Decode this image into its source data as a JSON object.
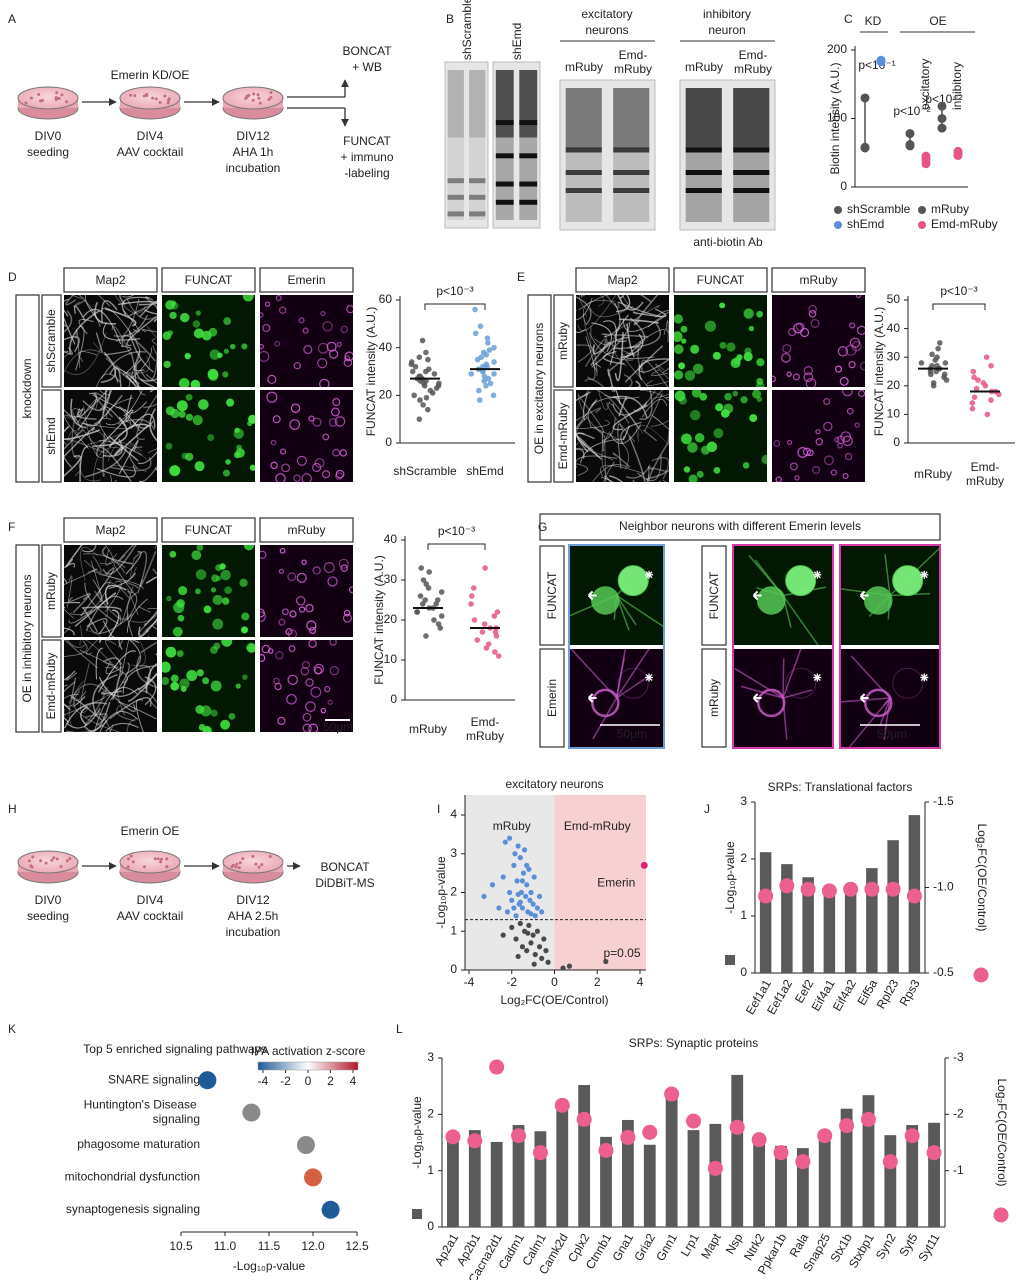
{
  "figure": {
    "letters": [
      "A",
      "B",
      "C",
      "D",
      "E",
      "F",
      "G",
      "H",
      "I",
      "J",
      "K",
      "L"
    ],
    "A": {
      "header": "Emerin KD/OE",
      "steps": [
        [
          "DIV0",
          "seeding"
        ],
        [
          "DIV4",
          "AAV cocktail"
        ],
        [
          "DIV12",
          "AHA 1h",
          "incubation"
        ]
      ],
      "outputs": [
        [
          "BONCAT",
          "+ WB"
        ],
        [
          "FUNCAT",
          "+ immuno",
          "-labeling"
        ]
      ]
    },
    "B": {
      "kd_lanes": [
        "shScramble",
        "shEmd"
      ],
      "oe_groups": [
        {
          "title": [
            "excitatory",
            "neurons"
          ],
          "lanes": [
            "mRuby",
            "Emd-mRuby"
          ]
        },
        {
          "title": [
            "inhibitory",
            "neuron"
          ],
          "lanes": [
            "mRuby",
            "Emd-mRuby"
          ]
        }
      ],
      "note": "anti-biotin Ab"
    },
    "D": {
      "columns": [
        "Map2",
        "FUNCAT",
        "Emerin"
      ],
      "rows": [
        "shScramble",
        "shEmd"
      ],
      "side": "knockdown"
    },
    "E": {
      "columns": [
        "Map2",
        "FUNCAT",
        "mRuby"
      ],
      "rows": [
        "mRuby",
        "Emd-mRuby"
      ],
      "side": "OE in excitatory neurons"
    },
    "F": {
      "columns": [
        "Map2",
        "FUNCAT",
        "mRuby"
      ],
      "rows": [
        "mRuby",
        "Emd-mRuby"
      ],
      "side": "OE in inhibitory neurons",
      "scale": "50μm"
    },
    "G": {
      "title": "Neighbor neurons with different Emerin levels",
      "left_rows": [
        "FUNCAT",
        "Emerin"
      ],
      "right_rows": [
        "FUNCAT",
        "mRuby"
      ],
      "scales": [
        "50μm",
        "50μm"
      ]
    },
    "H": {
      "header": "Emerin OE",
      "steps": [
        [
          "DIV0",
          "seeding"
        ],
        [
          "DIV4",
          "AAV cocktail"
        ],
        [
          "DIV12",
          "AHA 2.5h",
          "incubation"
        ]
      ],
      "output": [
        "BONCAT",
        "DiDBiT-MS"
      ]
    }
  },
  "chart_data": [
    {
      "type": "strip",
      "ylabel": "Biotin intensity (A.U.)",
      "categories": [
        "KD",
        "excitatory",
        "inhibitory"
      ],
      "group_header": "OE",
      "series": [
        {
          "name": "shScramble",
          "color": "#555555",
          "values": [
            [
              130,
              58,
              57
            ],
            null,
            null
          ]
        },
        {
          "name": "shEmd",
          "color": "#5b8fd6",
          "values": [
            [
              185,
              183
            ],
            null,
            null
          ]
        },
        {
          "name": "mRuby",
          "color": "#555555",
          "values": [
            null,
            [
              78,
              62,
              60
            ],
            [
              118,
              100,
              86
            ]
          ]
        },
        {
          "name": "Emd-mRuby",
          "color": "#e6558a",
          "values": [
            null,
            [
              45,
              40,
              34
            ],
            [
              52,
              48,
              46
            ]
          ]
        }
      ],
      "p_labels": [
        "p<10⁻¹",
        "p<10⁻²",
        "p<10⁻²"
      ],
      "ylim": [
        0,
        200
      ],
      "yticks": [
        0,
        100,
        200
      ]
    },
    {
      "type": "strip",
      "ylabel": "FUNCAT intensity (A.U.)",
      "categories": [
        "shScramble",
        "shEmd"
      ],
      "colors": [
        "#555555",
        "#6a9fd8"
      ],
      "values": [
        [
          10,
          14,
          16,
          18,
          19,
          20,
          21,
          22,
          23,
          24,
          24,
          25,
          25,
          26,
          26,
          27,
          27,
          28,
          28,
          29,
          30,
          30,
          31,
          32,
          33,
          34,
          35,
          36,
          38,
          43
        ],
        [
          18,
          20,
          22,
          24,
          25,
          26,
          27,
          28,
          29,
          29,
          30,
          30,
          31,
          31,
          32,
          32,
          33,
          34,
          35,
          36,
          37,
          38,
          39,
          40,
          42,
          44,
          46,
          49,
          56
        ]
      ],
      "medians": [
        27,
        31
      ],
      "annotation": "p<10⁻³",
      "ylim": [
        0,
        60
      ],
      "yticks": [
        0,
        20,
        40,
        60
      ]
    },
    {
      "type": "strip",
      "ylabel": "FUNCAT intensity (A.U.)",
      "categories": [
        "mRuby",
        "Emd-mRuby"
      ],
      "colors": [
        "#555555",
        "#e6558a"
      ],
      "values": [
        [
          20,
          21,
          22,
          23,
          24,
          24,
          25,
          25,
          26,
          26,
          26,
          27,
          27,
          28,
          28,
          29,
          30,
          31,
          33,
          35
        ],
        [
          10,
          12,
          14,
          15,
          16,
          17,
          18,
          18,
          19,
          20,
          21,
          22,
          23,
          25,
          27,
          30
        ]
      ],
      "medians": [
        26,
        18
      ],
      "annotation": "p<10⁻³",
      "ylim": [
        0,
        50
      ],
      "yticks": [
        0,
        10,
        20,
        30,
        40,
        50
      ]
    },
    {
      "type": "strip",
      "ylabel": "FUNCAT intensity (A.U.)",
      "categories": [
        "mRuby",
        "Emd-mRuby"
      ],
      "colors": [
        "#555555",
        "#e6558a"
      ],
      "values": [
        [
          16,
          18,
          19,
          20,
          21,
          22,
          22,
          23,
          23,
          24,
          24,
          25,
          25,
          26,
          27,
          28,
          29,
          30,
          32,
          33
        ],
        [
          11,
          12,
          13,
          14,
          15,
          16,
          17,
          17,
          18,
          18,
          19,
          20,
          21,
          22,
          24,
          26,
          28,
          33
        ]
      ],
      "medians": [
        23,
        18
      ],
      "annotation": "p<10⁻³",
      "ylim": [
        0,
        40
      ],
      "yticks": [
        0,
        10,
        20,
        30,
        40
      ]
    },
    {
      "type": "scatter",
      "title": "excitatory neurons",
      "regions": [
        "mRuby",
        "Emd-mRuby"
      ],
      "xlabel": "Log₂FC(OE/Control)",
      "ylabel": "-Log₁₀p-value",
      "series": [
        {
          "color": "#5b8fd6",
          "x": [
            -3.3,
            -2.9,
            -2.6,
            -2.4,
            -2.2,
            -2.1,
            -2.0,
            -1.9,
            -1.85,
            -1.8,
            -1.75,
            -1.7,
            -1.65,
            -1.6,
            -1.55,
            -1.5,
            -1.45,
            -1.4,
            -1.35,
            -1.3,
            -1.25,
            -1.2,
            -1.15,
            -1.1,
            -1.0,
            -0.95,
            -0.9,
            -0.8,
            -0.7,
            -0.6,
            -2.1,
            -1.9,
            -1.7,
            -1.5,
            -1.3,
            -1.1,
            -2.3,
            -1.6
          ],
          "values": [
            1.9,
            2.2,
            1.6,
            2.4,
            1.5,
            3.4,
            1.8,
            2.7,
            3.0,
            1.4,
            2.3,
            3.2,
            1.7,
            2.9,
            2.0,
            1.6,
            2.5,
            3.1,
            1.9,
            2.2,
            1.5,
            2.6,
            1.8,
            2.0,
            1.7,
            2.4,
            1.4,
            1.6,
            1.9,
            1.5,
            2.0,
            1.6,
            1.95,
            2.3,
            2.7,
            1.45,
            3.3,
            1.75
          ]
        },
        {
          "color": "#4a4a4a",
          "x": [
            -2.4,
            -2.0,
            -1.8,
            -1.6,
            -1.5,
            -1.4,
            -1.3,
            -1.2,
            -1.1,
            -1.0,
            -0.9,
            -0.8,
            -0.7,
            -0.6,
            -0.5,
            -0.4,
            -0.3,
            -1.7,
            -1.25,
            -0.95,
            0.4,
            0.7,
            2.4
          ],
          "values": [
            0.9,
            1.1,
            0.8,
            1.2,
            0.6,
            1.0,
            0.5,
            1.15,
            0.7,
            0.9,
            0.4,
            1.0,
            0.6,
            0.3,
            0.8,
            0.5,
            0.2,
            0.35,
            0.95,
            0.15,
            0.05,
            0.1,
            0.22
          ]
        },
        {
          "name": "Emerin",
          "color": "#d6267a",
          "x": [
            4.2
          ],
          "values": [
            2.7
          ]
        }
      ],
      "threshold": 1.3,
      "threshold_label": "p=0.05",
      "xlim": [
        -4,
        4
      ],
      "xticks": [
        -4,
        -2,
        0,
        2,
        4
      ],
      "ylim": [
        0,
        4
      ],
      "yticks": [
        0,
        1,
        2,
        3,
        4
      ]
    },
    {
      "type": "bar",
      "title": "SRPs: Translational factors",
      "ylabel": "-Log₁₀p-value",
      "y2label": "Log₂FC(OE/Control)",
      "categories": [
        "Eef1a1",
        "Eef1a2",
        "Eef2",
        "Eif4a1",
        "Eif4a2",
        "Eif5a",
        "Rpl23",
        "Rps3"
      ],
      "series": [
        {
          "color": "#5a5a5a",
          "values": [
            2.12,
            1.91,
            1.68,
            1.49,
            1.49,
            1.84,
            2.33,
            2.77
          ]
        },
        {
          "color": "#ec5f8e",
          "axis": "y2",
          "values": [
            -0.95,
            -1.01,
            -0.99,
            -0.98,
            -0.99,
            -0.99,
            -0.99,
            -0.95
          ]
        }
      ],
      "ylim": [
        0,
        3
      ],
      "yticks": [
        0,
        1,
        2,
        3
      ],
      "y2lim": [
        -0.5,
        -1.5
      ],
      "y2ticks": [
        -0.5,
        {
          "value": -1,
          "label": "-1.0"
        },
        -1.5
      ]
    },
    {
      "type": "bar",
      "title": "SRPs: Synaptic proteins",
      "ylabel": "-Log₁₀p-value",
      "y2label": "Log₂FC(OE/Control)",
      "categories": [
        "Ap2a1",
        "Ap2b1",
        "Cacna2d1",
        "Cadm1",
        "Calm1",
        "Camk2d",
        "Cplx2",
        "Ctnnb1",
        "Gna1",
        "Gria2",
        "Gnn1",
        "Lrp1",
        "Mapt",
        "Nsp",
        "Ntrk2",
        "Ppkar1b",
        "Rala",
        "Snap25",
        "Stx1b",
        "Stxbp1",
        "Syn2",
        "Syt5",
        "Syt11"
      ],
      "series": [
        {
          "color": "#5a5a5a",
          "values": [
            1.6,
            1.72,
            1.51,
            1.81,
            1.7,
            2.08,
            2.52,
            1.6,
            1.9,
            1.46,
            2.33,
            1.72,
            1.83,
            2.7,
            1.58,
            1.44,
            1.4,
            1.63,
            2.1,
            2.34,
            1.63,
            1.81,
            1.85
          ]
        },
        {
          "color": "#ec5f8e",
          "axis": "y2",
          "values": [
            -1.6,
            -1.53,
            -2.84,
            -1.62,
            -1.32,
            -2.16,
            -1.91,
            -1.36,
            -1.59,
            -1.68,
            -2.36,
            -1.88,
            -1.04,
            -1.77,
            -1.55,
            -1.32,
            -1.16,
            -1.62,
            -1.8,
            -1.91,
            -1.16,
            -1.62,
            -1.32
          ]
        }
      ],
      "ylim": [
        0,
        3
      ],
      "yticks": [
        0,
        1,
        2,
        3
      ],
      "y2lim": [
        0,
        -3
      ],
      "y2ticks": [
        -1,
        -2,
        -3
      ]
    },
    {
      "type": "dot",
      "title": "Top 5 enriched signaling pathways",
      "xlabel": "-Log₁₀p-value",
      "categories": [
        "SNARE signaling",
        "Huntington's Disease signaling",
        "phagosome maturation",
        "mitochondrial dysfunction",
        "synaptogenesis signaling"
      ],
      "values": [
        10.8,
        11.3,
        11.92,
        12.0,
        12.2
      ],
      "colors": [
        "#1f5b96",
        "#8a8a8a",
        "#8a8a8a",
        "#d5603f",
        "#1f5b96"
      ],
      "label_colors": [
        "#c2185b",
        null,
        null,
        null,
        "#c2185b"
      ],
      "xlim": [
        10.5,
        12.5
      ],
      "xticks": [
        10.5,
        {
          "value": 11,
          "label": "11.0"
        },
        11.5,
        {
          "value": 12,
          "label": "12.0"
        },
        12.5
      ],
      "colorbar": {
        "label": "IPA activation z-score",
        "lim": [
          -4,
          4
        ],
        "ticks": [
          -4,
          -2,
          0,
          2,
          4
        ],
        "colors": [
          "#1f5b96",
          "#ffffff",
          "#b2182b"
        ]
      }
    }
  ]
}
